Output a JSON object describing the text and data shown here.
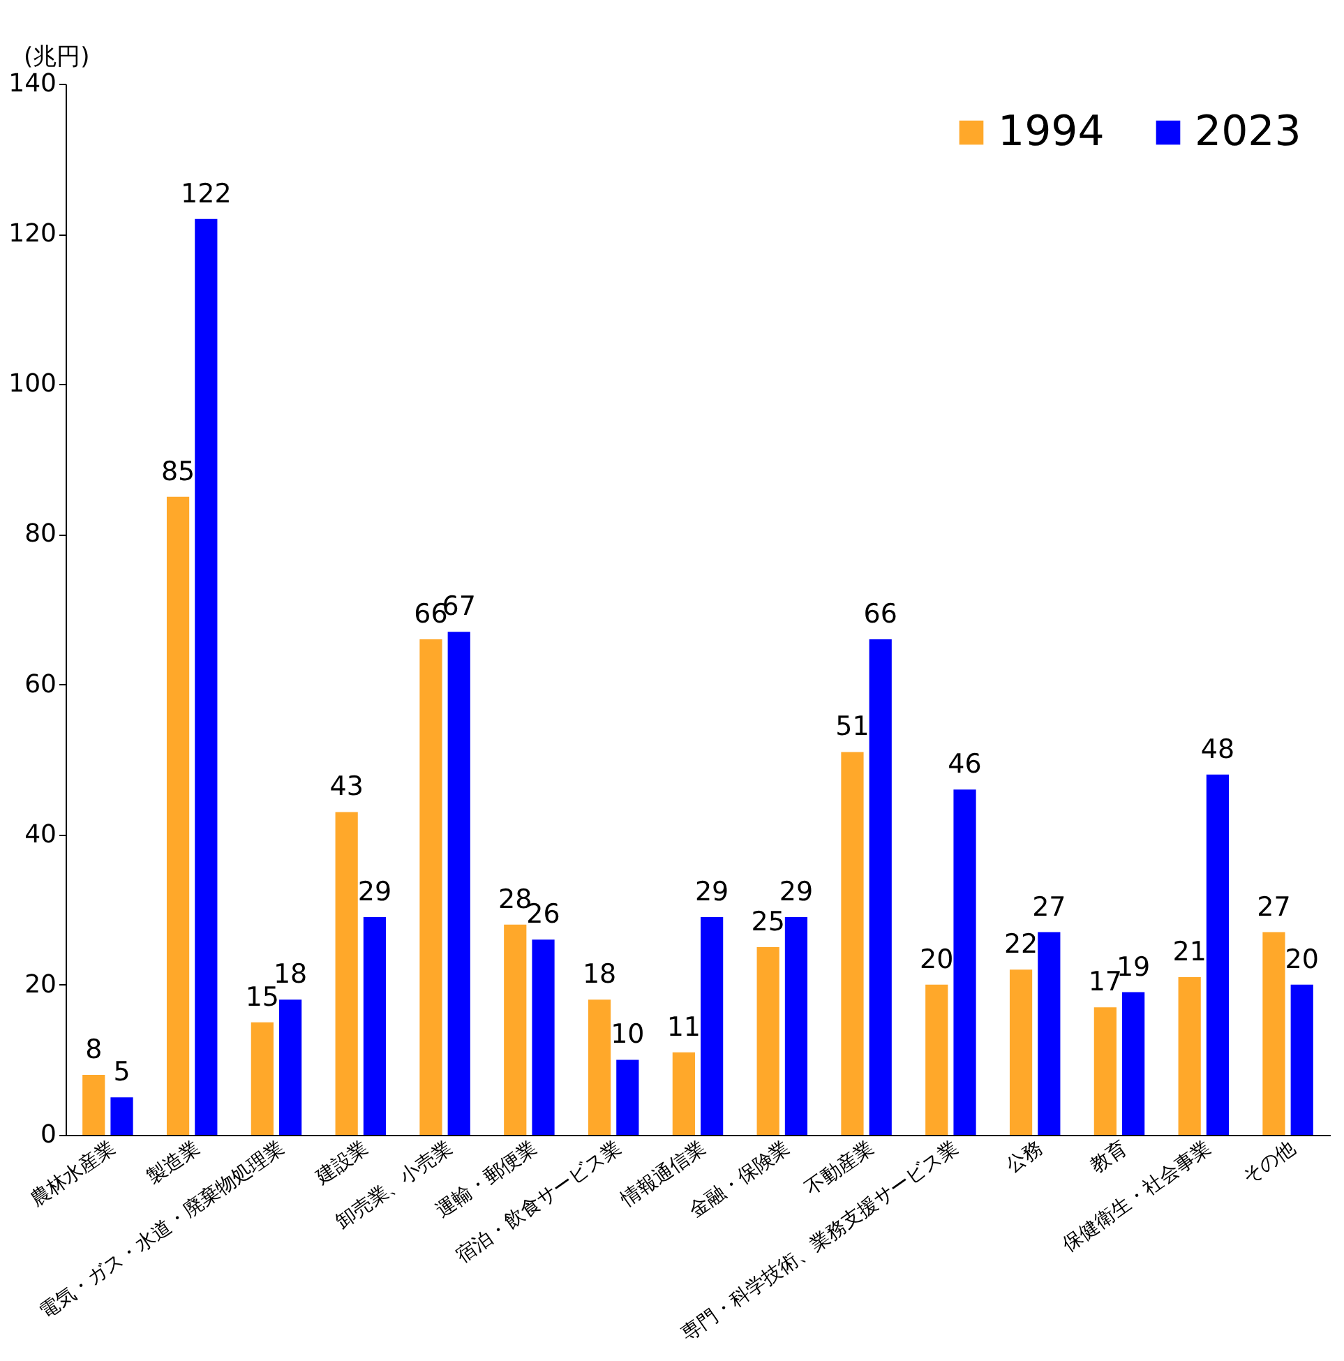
{
  "chart_data": {
    "type": "bar",
    "ylabel": "(兆円)",
    "categories": [
      "農林水産業",
      "製造業",
      "電気・ガス・水道・廃棄物処理業",
      "建設業",
      "卸売業、小売業",
      "運輸・郵便業",
      "宿泊・飲食サービス業",
      "情報通信業",
      "金融・保険業",
      "不動産業",
      "専門・科学技術、業務支援サービス業",
      "公務",
      "教育",
      "保健衛生・社会事業",
      "その他"
    ],
    "series": [
      {
        "name": "1994",
        "color": "#ffa82a",
        "values": [
          8,
          85,
          15,
          43,
          66,
          28,
          18,
          11,
          25,
          51,
          20,
          22,
          17,
          21,
          27
        ]
      },
      {
        "name": "2023",
        "color": "#0000ff",
        "values": [
          5,
          122,
          18,
          29,
          67,
          26,
          10,
          29,
          29,
          66,
          46,
          27,
          19,
          48,
          20
        ]
      }
    ],
    "ylim": [
      0,
      140
    ],
    "yticks": [
      0,
      20,
      40,
      60,
      80,
      100,
      120,
      140
    ],
    "grid": false,
    "legend": "top right",
    "data_labels": true
  }
}
